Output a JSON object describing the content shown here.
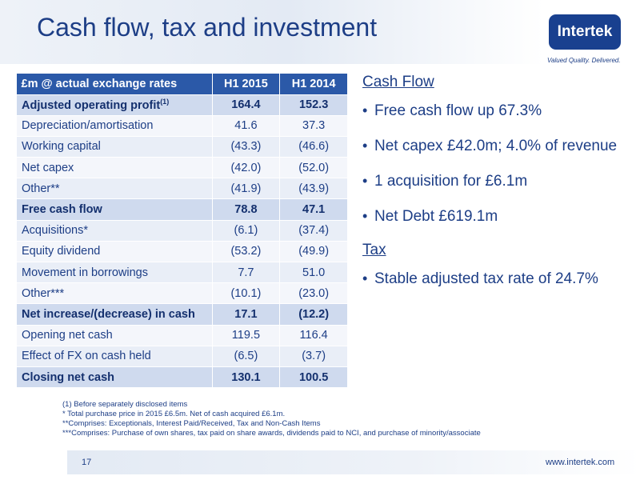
{
  "header": {
    "title": "Cash flow, tax and investment"
  },
  "logo": {
    "name": "Intertek",
    "tagline": "Valued Quality. Delivered."
  },
  "table": {
    "headers": [
      "£m @ actual exchange rates",
      "H1 2015",
      "H1 2014"
    ],
    "rows": [
      {
        "label": "Adjusted operating profit",
        "sup": "(1)",
        "h1_2015": "164.4",
        "h1_2014": "152.3",
        "bold": true
      },
      {
        "label": "Depreciation/amortisation",
        "sup": "",
        "h1_2015": "41.6",
        "h1_2014": "37.3",
        "bold": false
      },
      {
        "label": "Working capital",
        "sup": "",
        "h1_2015": "(43.3)",
        "h1_2014": "(46.6)",
        "bold": false
      },
      {
        "label": "Net capex",
        "sup": "",
        "h1_2015": "(42.0)",
        "h1_2014": "(52.0)",
        "bold": false
      },
      {
        "label": "Other**",
        "sup": "",
        "h1_2015": "(41.9)",
        "h1_2014": "(43.9)",
        "bold": false
      },
      {
        "label": "Free cash flow",
        "sup": "",
        "h1_2015": "78.8",
        "h1_2014": "47.1",
        "bold": true
      },
      {
        "label": "Acquisitions*",
        "sup": "",
        "h1_2015": "(6.1)",
        "h1_2014": "(37.4)",
        "bold": false
      },
      {
        "label": "Equity dividend",
        "sup": "",
        "h1_2015": "(53.2)",
        "h1_2014": "(49.9)",
        "bold": false
      },
      {
        "label": "Movement in borrowings",
        "sup": "",
        "h1_2015": "7.7",
        "h1_2014": "51.0",
        "bold": false
      },
      {
        "label": "Other***",
        "sup": "",
        "h1_2015": "(10.1)",
        "h1_2014": "(23.0)",
        "bold": false
      },
      {
        "label": "Net increase/(decrease) in cash",
        "sup": "",
        "h1_2015": "17.1",
        "h1_2014": "(12.2)",
        "bold": true
      },
      {
        "label": "Opening net cash",
        "sup": "",
        "h1_2015": "119.5",
        "h1_2014": "116.4",
        "bold": false
      },
      {
        "label": "Effect of FX on cash held",
        "sup": "",
        "h1_2015": "(6.5)",
        "h1_2014": "(3.7)",
        "bold": false
      },
      {
        "label": "Closing net cash",
        "sup": "",
        "h1_2015": "130.1",
        "h1_2014": "100.5",
        "bold": true
      }
    ]
  },
  "cash_flow": {
    "heading": "Cash Flow",
    "bullets": [
      "Free cash flow up 67.3%",
      "Net capex £42.0m; 4.0% of revenue",
      "1 acquisition for £6.1m",
      "Net Debt £619.1m"
    ]
  },
  "tax": {
    "heading": "Tax",
    "bullets": [
      "Stable adjusted tax rate of 24.7%"
    ]
  },
  "footnotes": [
    "(1) Before separately disclosed items",
    "* Total purchase price in 2015 £6.5m. Net of cash acquired £6.1m.",
    "**Comprises: Exceptionals, Interest Paid/Received, Tax and Non-Cash Items",
    "***Comprises: Purchase of own shares, tax paid on share awards, dividends paid to NCI, and purchase of minority/associate"
  ],
  "footer": {
    "page_number": "17",
    "website": "www.intertek.com"
  }
}
